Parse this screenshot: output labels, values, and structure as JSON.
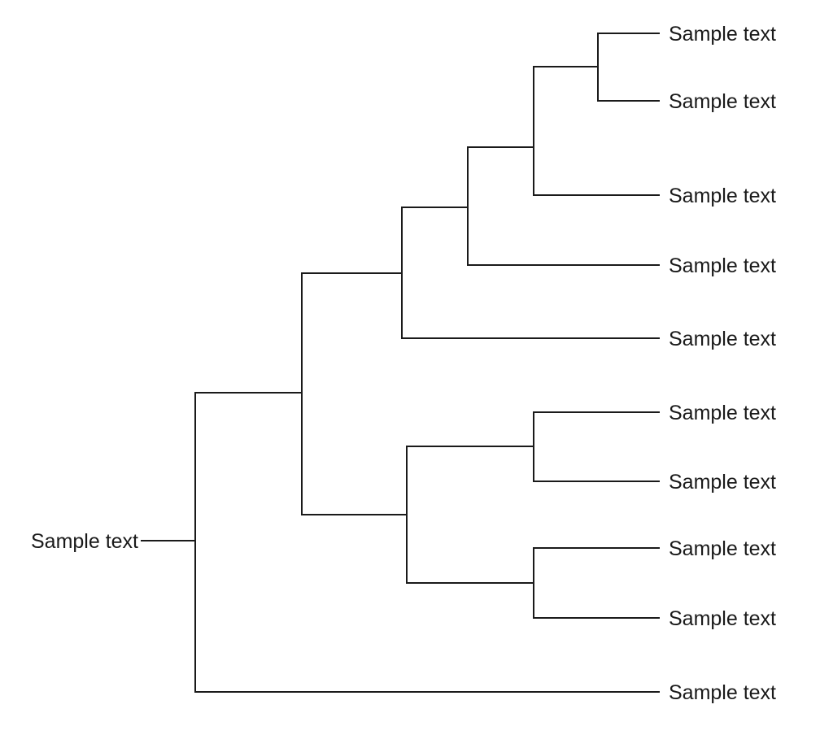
{
  "diagram": {
    "type": "dendrogram",
    "root": {
      "label": "Sample text"
    },
    "leaves": [
      {
        "label": "Sample text"
      },
      {
        "label": "Sample text"
      },
      {
        "label": "Sample text"
      },
      {
        "label": "Sample text"
      },
      {
        "label": "Sample text"
      },
      {
        "label": "Sample text"
      },
      {
        "label": "Sample text"
      },
      {
        "label": "Sample text"
      },
      {
        "label": "Sample text"
      },
      {
        "label": "Sample text"
      }
    ]
  }
}
